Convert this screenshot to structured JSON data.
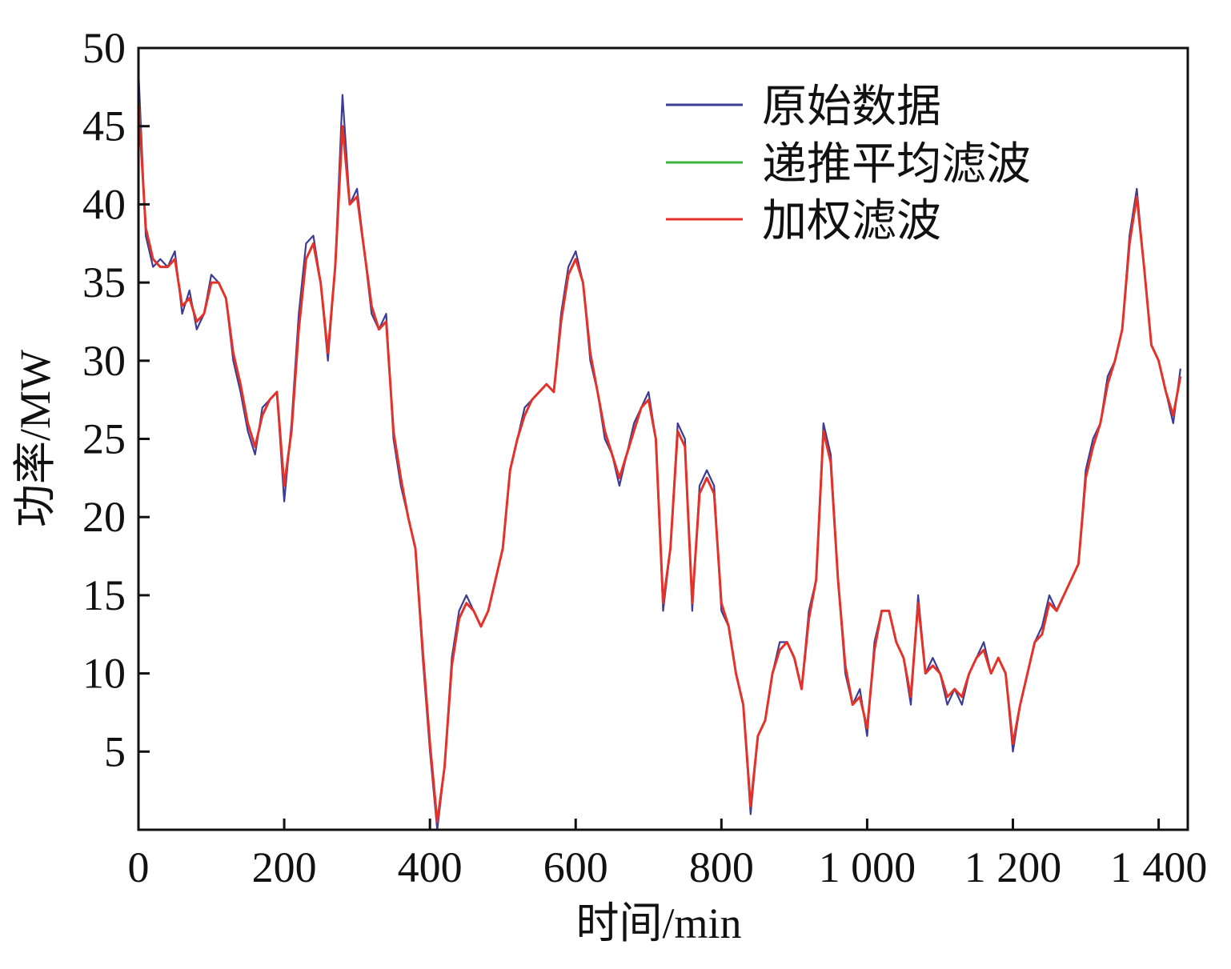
{
  "chart_data": {
    "type": "line",
    "title": "",
    "xlabel": "时间/min",
    "ylabel": "功率/MW",
    "xlim": [
      0,
      1440
    ],
    "ylim": [
      0,
      50
    ],
    "x_ticks": [
      0,
      200,
      400,
      600,
      800,
      1000,
      1200,
      1400
    ],
    "x_tick_labels": [
      "0",
      "200",
      "400",
      "600",
      "800",
      "1 000",
      "1 200",
      "1 400"
    ],
    "y_ticks": [
      5,
      10,
      15,
      20,
      25,
      30,
      35,
      40,
      45,
      50
    ],
    "y_tick_labels": [
      "5",
      "10",
      "15",
      "20",
      "25",
      "30",
      "35",
      "40",
      "45",
      "50"
    ],
    "grid": false,
    "legend_position": "top-right",
    "series": [
      {
        "name": "原始数据",
        "color": "#3c3c96"
      },
      {
        "name": "递推平均滤波",
        "color": "#3cb43c"
      },
      {
        "name": "加权滤波",
        "color": "#e53228"
      }
    ],
    "x": [
      0,
      10,
      20,
      30,
      40,
      50,
      60,
      70,
      80,
      90,
      100,
      110,
      120,
      130,
      140,
      150,
      160,
      170,
      180,
      190,
      200,
      210,
      220,
      230,
      240,
      250,
      260,
      270,
      280,
      290,
      300,
      310,
      320,
      330,
      340,
      350,
      360,
      370,
      380,
      390,
      400,
      410,
      420,
      430,
      440,
      450,
      460,
      470,
      480,
      490,
      500,
      510,
      520,
      530,
      540,
      550,
      560,
      570,
      580,
      590,
      600,
      610,
      620,
      630,
      640,
      650,
      660,
      670,
      680,
      690,
      700,
      710,
      720,
      730,
      740,
      750,
      760,
      770,
      780,
      790,
      800,
      810,
      820,
      830,
      840,
      850,
      860,
      870,
      880,
      890,
      900,
      910,
      920,
      930,
      940,
      950,
      960,
      970,
      980,
      990,
      1000,
      1010,
      1020,
      1030,
      1040,
      1050,
      1060,
      1070,
      1080,
      1090,
      1100,
      1110,
      1120,
      1130,
      1140,
      1150,
      1160,
      1170,
      1180,
      1190,
      1200,
      1210,
      1220,
      1230,
      1240,
      1250,
      1260,
      1270,
      1280,
      1290,
      1300,
      1310,
      1320,
      1330,
      1340,
      1350,
      1360,
      1370,
      1380,
      1390,
      1400,
      1410,
      1420,
      1430
    ],
    "raw": [
      48.5,
      38,
      36,
      36.5,
      36,
      37,
      33,
      34.5,
      32,
      33,
      35.5,
      35,
      34,
      30,
      28,
      25.5,
      24,
      27,
      27.5,
      28,
      21,
      26,
      33,
      37.5,
      38,
      35,
      30,
      36,
      47,
      40,
      41,
      37,
      33,
      32,
      33,
      25,
      22,
      20,
      18,
      11,
      5,
      0,
      4,
      11,
      14,
      15,
      14,
      13,
      14,
      16,
      18,
      23,
      25,
      27,
      27.5,
      28,
      28.5,
      28,
      33,
      36,
      37,
      35,
      30,
      28,
      25,
      24,
      22,
      24,
      26,
      27,
      28,
      25,
      14,
      18,
      26,
      25,
      14,
      22,
      23,
      22,
      14,
      13,
      10,
      8,
      1,
      6,
      7,
      10,
      12,
      12,
      11,
      9,
      14,
      16,
      26,
      24,
      16,
      10,
      8,
      9,
      6,
      12,
      14,
      14,
      12,
      11,
      8,
      15,
      10,
      11,
      10,
      8,
      9,
      8,
      10,
      11,
      12,
      10,
      11,
      10,
      5,
      8,
      10,
      12,
      13,
      15,
      14,
      15,
      16,
      17,
      23,
      25,
      26,
      29,
      30,
      32,
      38,
      41,
      36,
      31,
      30,
      28,
      26,
      29.5
    ],
    "recursive": [
      47,
      38.5,
      36.5,
      36,
      36,
      36.5,
      33.5,
      34,
      32.5,
      33,
      35,
      35,
      34,
      30.5,
      28.5,
      26,
      24.5,
      26.5,
      27.5,
      28,
      22,
      25.5,
      32,
      36.5,
      37.5,
      35,
      30.5,
      36,
      45,
      40,
      40.5,
      37,
      33.5,
      32,
      32.5,
      25.5,
      22.5,
      20,
      18,
      11.5,
      5.5,
      0.5,
      4,
      10.5,
      13.5,
      14.5,
      14,
      13,
      14,
      16,
      18,
      23,
      25,
      26.5,
      27.5,
      28,
      28.5,
      28,
      32.5,
      35.5,
      36.5,
      35,
      30.5,
      28,
      25.5,
      24,
      22.5,
      24,
      25.5,
      27,
      27.5,
      25,
      14.5,
      18,
      25.5,
      24.5,
      14.5,
      21.5,
      22.5,
      21.5,
      14.5,
      13,
      10,
      8,
      1.5,
      6,
      7,
      10,
      11.5,
      12,
      11,
      9,
      13.5,
      16,
      25.5,
      23.5,
      16,
      10.5,
      8,
      8.5,
      6.5,
      11.5,
      14,
      14,
      12,
      11,
      8.5,
      14.5,
      10,
      10.5,
      10,
      8.5,
      9,
      8.5,
      10,
      11,
      11.5,
      10,
      11,
      10,
      5.5,
      8,
      10,
      12,
      12.5,
      14.5,
      14,
      15,
      16,
      17,
      22.5,
      24.5,
      26,
      28.5,
      30,
      32,
      37.5,
      40.5,
      36,
      31,
      30,
      28,
      26.5,
      29
    ],
    "weighted": [
      46.5,
      38.5,
      36.5,
      36,
      36,
      36.5,
      33.5,
      34,
      32.5,
      33,
      35,
      35,
      34,
      30.5,
      28.5,
      26,
      24.5,
      26.5,
      27.5,
      28,
      22,
      25.5,
      32,
      36.5,
      37.5,
      35,
      30.5,
      36,
      45,
      40,
      40.5,
      37,
      33.5,
      32,
      32.5,
      25.5,
      22.5,
      20,
      18,
      11.5,
      5.5,
      0.5,
      4,
      10.5,
      13.5,
      14.5,
      14,
      13,
      14,
      16,
      18,
      23,
      25,
      26.5,
      27.5,
      28,
      28.5,
      28,
      32.5,
      35.5,
      36.5,
      35,
      30.5,
      28,
      25.5,
      24,
      22.5,
      24,
      25.5,
      27,
      27.5,
      25,
      14.5,
      18,
      25.5,
      24.5,
      14.5,
      21.5,
      22.5,
      21.5,
      14.5,
      13,
      10,
      8,
      1.5,
      6,
      7,
      10,
      11.5,
      12,
      11,
      9,
      13.5,
      16,
      25.5,
      23.5,
      16,
      10.5,
      8,
      8.5,
      6.5,
      11.5,
      14,
      14,
      12,
      11,
      8.5,
      14.5,
      10,
      10.5,
      10,
      8.5,
      9,
      8.5,
      10,
      11,
      11.5,
      10,
      11,
      10,
      5.5,
      8,
      10,
      12,
      12.5,
      14.5,
      14,
      15,
      16,
      17,
      22.5,
      24.5,
      26,
      28.5,
      30,
      32,
      37.5,
      40.5,
      36,
      31,
      30,
      28,
      26.5,
      29
    ]
  }
}
